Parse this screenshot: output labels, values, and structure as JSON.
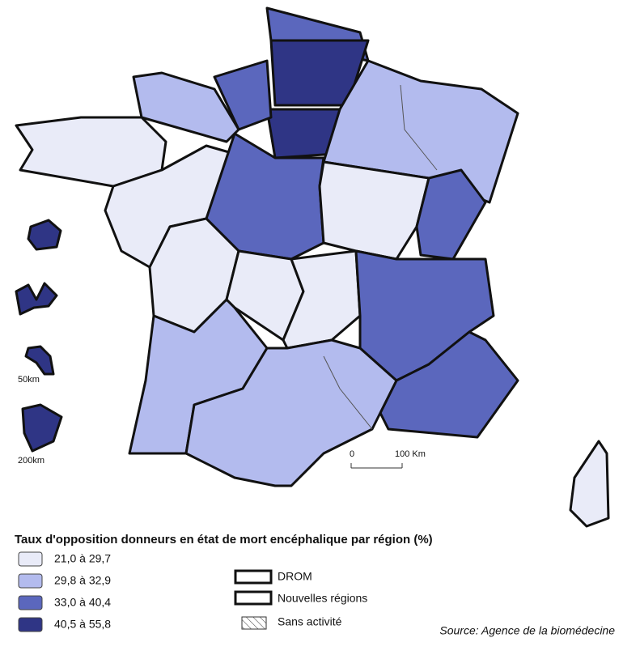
{
  "legend": {
    "title": "Taux d'opposition donneurs en état de mort encéphalique par région (%)",
    "classes": [
      {
        "label": "21,0 à 29,7",
        "color": "#e9ebf8"
      },
      {
        "label": "29,8 à 32,9",
        "color": "#b3bbee"
      },
      {
        "label": "33,0 à 40,4",
        "color": "#5b67bd"
      },
      {
        "label": "40,5 à 55,8",
        "color": "#2f3585"
      }
    ]
  },
  "symbols": [
    "DROM",
    "Nouvelles régions",
    "Sans activité"
  ],
  "scale": {
    "labels": [
      "0",
      "100 Km"
    ]
  },
  "inset_scales": [
    "50km",
    "200km"
  ],
  "source": "Source: Agence de la biomédecine"
}
